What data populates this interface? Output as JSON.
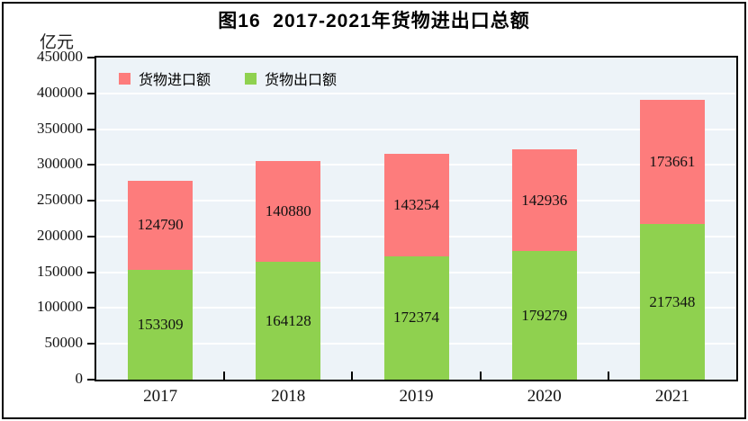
{
  "title": "图16  2017-2021年货物进出口总额",
  "y_axis_unit": "亿元",
  "legend": [
    {
      "key": "import",
      "label": "货物进口额",
      "color": "#fd7c7c"
    },
    {
      "key": "export",
      "label": "货物出口额",
      "color": "#8fd14f"
    }
  ],
  "chart_data": {
    "type": "bar",
    "stacked": true,
    "title": "图16  2017-2021年货物进出口总额",
    "ylabel": "亿元",
    "categories": [
      "2017",
      "2018",
      "2019",
      "2020",
      "2021"
    ],
    "series": [
      {
        "key": "export",
        "name": "货物出口额",
        "color": "#8fd14f",
        "values": [
          153309,
          164128,
          172374,
          179279,
          217348
        ]
      },
      {
        "key": "import",
        "name": "货物进口额",
        "color": "#fd7c7c",
        "values": [
          124790,
          140880,
          143254,
          142936,
          173661
        ]
      }
    ],
    "ylim": [
      0,
      450000
    ],
    "ytick_step": 50000,
    "grid": true,
    "gridline_color": "#ffffff",
    "plot_bg": "#edf3f8",
    "legend_position": "top-left-inside"
  }
}
